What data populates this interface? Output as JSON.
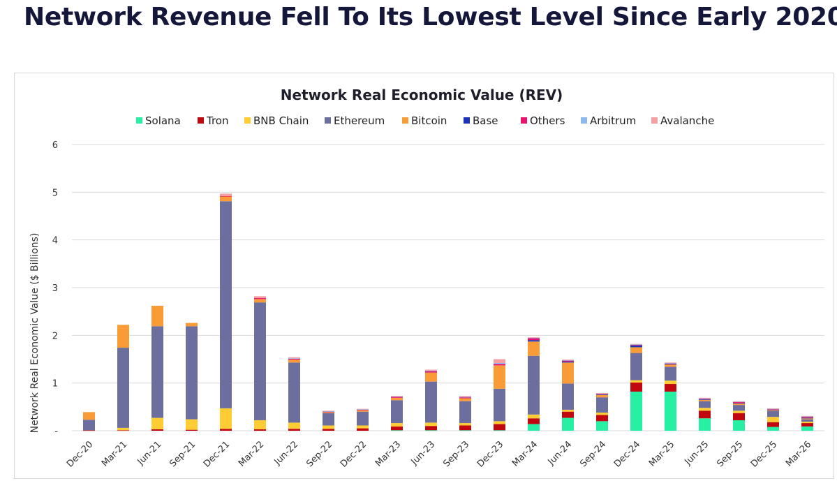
{
  "headline": "Network Revenue Fell To Its Lowest Level Since Early 2020",
  "chart_data": {
    "type": "bar",
    "stacked": true,
    "title": "Network Real Economic Value (REV)",
    "ylabel": "Network Real Economic Value ($ Billions)",
    "xlabel": "",
    "ylim": [
      0,
      6
    ],
    "yticks": [
      "-",
      "1",
      "2",
      "3",
      "4",
      "5",
      "6"
    ],
    "grid": true,
    "legend_position": "top",
    "categories": [
      "Dec-20",
      "Mar-21",
      "Jun-21",
      "Sep-21",
      "Dec-21",
      "Mar-22",
      "Jun-22",
      "Sep-22",
      "Dec-22",
      "Mar-23",
      "Jun-23",
      "Sep-23",
      "Dec-23",
      "Mar-24",
      "Jun-24",
      "Sep-24",
      "Dec-24",
      "Mar-25",
      "Jun-25",
      "Sep-25",
      "Dec-25",
      "Mar-26"
    ],
    "series": [
      {
        "name": "Solana",
        "color": "#27f0a4",
        "values": [
          0,
          0,
          0,
          0,
          0,
          0,
          0,
          0,
          0,
          0.01,
          0.01,
          0.01,
          0.01,
          0.14,
          0.27,
          0.2,
          0.82,
          0.82,
          0.26,
          0.22,
          0.08,
          0.09
        ]
      },
      {
        "name": "Tron",
        "color": "#c2080f",
        "values": [
          0.01,
          0.01,
          0.03,
          0.02,
          0.04,
          0.03,
          0.04,
          0.04,
          0.05,
          0.08,
          0.09,
          0.1,
          0.13,
          0.12,
          0.13,
          0.13,
          0.19,
          0.16,
          0.16,
          0.15,
          0.1,
          0.07
        ]
      },
      {
        "name": "BNB Chain",
        "color": "#ffcc33",
        "values": [
          0,
          0.05,
          0.24,
          0.22,
          0.43,
          0.19,
          0.13,
          0.07,
          0.06,
          0.07,
          0.07,
          0.05,
          0.06,
          0.08,
          0.04,
          0.05,
          0.05,
          0.07,
          0.06,
          0.05,
          0.11,
          0.03
        ]
      },
      {
        "name": "Ethereum",
        "color": "#6c6f9e",
        "values": [
          0.22,
          1.68,
          1.92,
          1.95,
          4.34,
          2.47,
          1.26,
          0.26,
          0.29,
          0.48,
          0.86,
          0.46,
          0.68,
          1.23,
          0.55,
          0.32,
          0.57,
          0.29,
          0.14,
          0.12,
          0.12,
          0.05
        ]
      },
      {
        "name": "Bitcoin",
        "color": "#f99c38",
        "values": [
          0.16,
          0.48,
          0.43,
          0.07,
          0.1,
          0.07,
          0.06,
          0.02,
          0.03,
          0.05,
          0.19,
          0.06,
          0.49,
          0.3,
          0.44,
          0.05,
          0.12,
          0.05,
          0.03,
          0.03,
          0.02,
          0.02
        ]
      },
      {
        "name": "Base",
        "color": "#1a33b8",
        "values": [
          0,
          0,
          0,
          0,
          0,
          0,
          0,
          0,
          0,
          0,
          0,
          0,
          0,
          0.03,
          0.02,
          0.01,
          0.04,
          0.01,
          0.01,
          0.01,
          0.01,
          0.01
        ]
      },
      {
        "name": "Others",
        "color": "#e8136e",
        "values": [
          0,
          0,
          0,
          0,
          0.01,
          0.02,
          0.02,
          0.01,
          0.01,
          0.02,
          0.03,
          0.02,
          0.03,
          0.04,
          0.02,
          0.01,
          0.01,
          0.01,
          0.01,
          0.02,
          0.01,
          0.02
        ]
      },
      {
        "name": "Arbitrum",
        "color": "#8fb8ef",
        "values": [
          0,
          0,
          0,
          0,
          0,
          0,
          0.01,
          0.01,
          0.01,
          0.01,
          0.01,
          0.01,
          0.02,
          0.01,
          0.01,
          0.01,
          0.01,
          0.01,
          0.01,
          0.01,
          0.01,
          0.01
        ]
      },
      {
        "name": "Avalanche",
        "color": "#f4a0a0",
        "values": [
          0,
          0,
          0,
          0,
          0.05,
          0.04,
          0.02,
          0.01,
          0.01,
          0.01,
          0.02,
          0.02,
          0.08,
          0.01,
          0.01,
          0.01,
          0.01,
          0.01,
          0.01,
          0.01,
          0.01,
          0.01
        ]
      }
    ]
  }
}
